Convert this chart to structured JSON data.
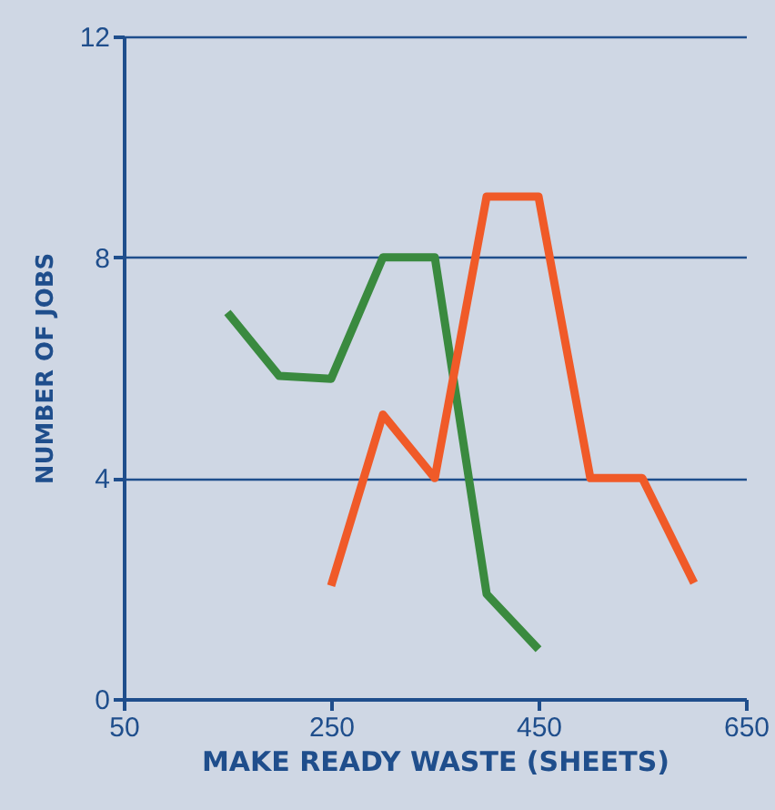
{
  "chart_data": {
    "type": "line",
    "xlabel": "MAKE READY WASTE (SHEETS)",
    "ylabel": "NUMBER OF JOBS",
    "xlim": [
      50,
      650
    ],
    "xticks": [
      50,
      250,
      450,
      650
    ],
    "ylim": [
      0,
      12
    ],
    "yticks": [
      0,
      4,
      8,
      12
    ],
    "grid": "y",
    "marker": "none",
    "line_style": "solid",
    "series": [
      {
        "color": "#3a8a3f",
        "x": [
          150,
          200,
          250,
          300,
          350,
          400,
          450
        ],
        "values": [
          7.0,
          5.85,
          5.8,
          8.0,
          8.0,
          1.9,
          0.9
        ]
      },
      {
        "color": "#f05a28",
        "x": [
          250,
          300,
          350,
          400,
          450,
          500,
          550,
          600
        ],
        "values": [
          2.05,
          5.15,
          4.0,
          9.1,
          9.1,
          4.0,
          4.0,
          2.1
        ]
      }
    ]
  }
}
